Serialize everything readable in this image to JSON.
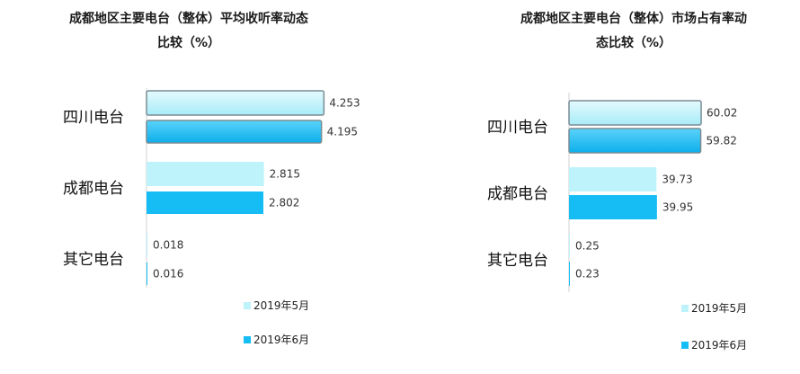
{
  "colors": {
    "may": "#BFF3FB",
    "june": "#16BDF4",
    "may_hi": "#A8ECF7",
    "june_hi": "#0CAEEB",
    "axis": "#D0D0D0"
  },
  "chart_data": [
    {
      "type": "bar",
      "orientation": "horizontal",
      "title_lines": [
        "成都地区主要电台（整体）平均收听率动态",
        "比较（%）"
      ],
      "categories": [
        "四川电台",
        "成都电台",
        "其它电台"
      ],
      "series": [
        {
          "name": "2019年5月",
          "values": [
            4.253,
            2.815,
            0.018
          ]
        },
        {
          "name": "2019年6月",
          "values": [
            4.195,
            2.802,
            0.016
          ]
        }
      ],
      "value_labels": [
        [
          "4.253",
          "2.815",
          "0.018"
        ],
        [
          "4.195",
          "2.802",
          "0.016"
        ]
      ],
      "xlim": [
        0,
        5
      ],
      "highlighted_category": "四川电台",
      "legend_position": "bottom",
      "grid": false
    },
    {
      "type": "bar",
      "orientation": "horizontal",
      "title_lines": [
        "成都地区主要电台（整体）市场占有率动",
        "态比较（%）"
      ],
      "categories": [
        "四川电台",
        "成都电台",
        "其它电台"
      ],
      "series": [
        {
          "name": "2019年5月",
          "values": [
            60.02,
            39.73,
            0.25
          ]
        },
        {
          "name": "2019年6月",
          "values": [
            59.82,
            39.95,
            0.23
          ]
        }
      ],
      "value_labels": [
        [
          "60.02",
          "39.73",
          "0.25"
        ],
        [
          "59.82",
          "39.95",
          "0.23"
        ]
      ],
      "xlim": [
        0,
        100
      ],
      "highlighted_category": "四川电台",
      "legend_position": "bottom",
      "grid": false
    }
  ]
}
